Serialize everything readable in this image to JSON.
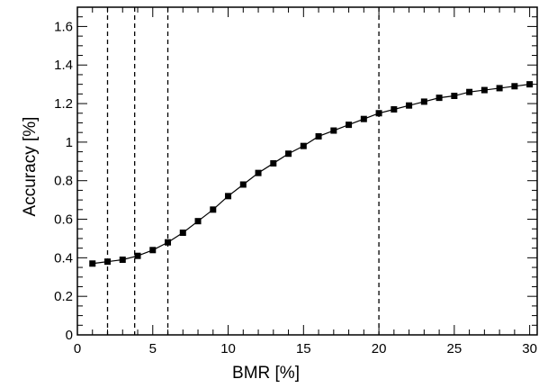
{
  "chart_data": {
    "type": "line",
    "xlabel": "BMR [%]",
    "ylabel": "Accuracy [%]",
    "xlim": [
      0,
      30.5
    ],
    "ylim": [
      0,
      1.7
    ],
    "x_ticks": [
      0,
      5,
      10,
      15,
      20,
      25,
      30
    ],
    "x_tick_labels": [
      "0",
      "5",
      "10",
      "15",
      "20",
      "25",
      "30"
    ],
    "y_ticks": [
      0,
      0.2,
      0.4,
      0.6,
      0.8,
      1,
      1.2,
      1.4,
      1.6
    ],
    "y_tick_labels": [
      "0",
      "0.2",
      "0.4",
      "0.6",
      "0.8",
      "1",
      "1.2",
      "1.4",
      "1.6"
    ],
    "x_minor_step": 1,
    "y_minor_step": 0.05,
    "grid": false,
    "marker": "square",
    "color": "#000000",
    "vertical_dashed_lines": [
      2,
      3.8,
      6,
      20
    ],
    "series": [
      {
        "x": [
          1,
          2,
          3,
          4,
          5,
          6,
          7,
          8,
          9,
          10,
          11,
          12,
          13,
          14,
          15,
          16,
          17,
          18,
          19,
          20,
          21,
          22,
          23,
          24,
          25,
          26,
          27,
          28,
          29,
          30
        ],
        "values": [
          0.37,
          0.38,
          0.39,
          0.41,
          0.44,
          0.48,
          0.53,
          0.59,
          0.65,
          0.72,
          0.78,
          0.84,
          0.89,
          0.94,
          0.98,
          1.03,
          1.06,
          1.09,
          1.12,
          1.15,
          1.17,
          1.19,
          1.21,
          1.23,
          1.24,
          1.26,
          1.27,
          1.28,
          1.29,
          1.3
        ]
      }
    ]
  }
}
